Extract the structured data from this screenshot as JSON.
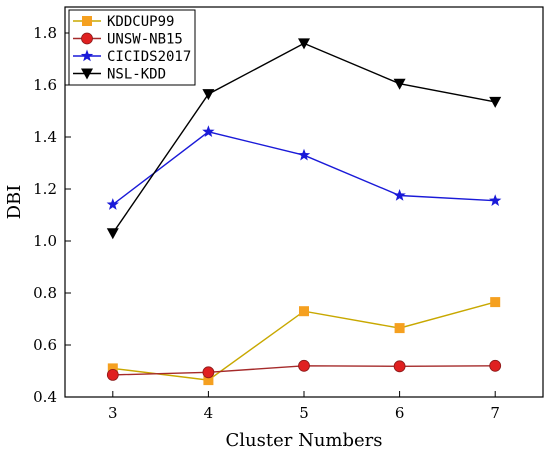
{
  "chart_data": {
    "type": "line",
    "title": "",
    "xlabel": "Cluster Numbers",
    "ylabel": "DBI",
    "x": [
      3,
      4,
      5,
      6,
      7
    ],
    "xlim": [
      2.5,
      7.5
    ],
    "ylim": [
      0.4,
      1.9
    ],
    "xticks": [
      "3",
      "4",
      "5",
      "6",
      "7"
    ],
    "yticks": [
      "0.4",
      "0.6",
      "0.8",
      "1.0",
      "1.2",
      "1.4",
      "1.6",
      "1.8"
    ],
    "grid": false,
    "legend_position": "top-left",
    "series": [
      {
        "name": "KDDCUP99",
        "values": [
          0.51,
          0.465,
          0.73,
          0.665,
          0.765
        ],
        "marker": "square",
        "line_color": "#c8a800",
        "marker_color": "#f5a020"
      },
      {
        "name": "UNSW-NB15",
        "values": [
          0.485,
          0.495,
          0.52,
          0.518,
          0.52
        ],
        "marker": "circle",
        "line_color": "#a52a2a",
        "marker_color": "#e02020"
      },
      {
        "name": "CICIDS2017",
        "values": [
          1.14,
          1.42,
          1.33,
          1.175,
          1.155
        ],
        "marker": "star",
        "line_color": "#1a1ad8",
        "marker_color": "#1a1ad8"
      },
      {
        "name": "NSL-KDD",
        "values": [
          1.03,
          1.565,
          1.76,
          1.605,
          1.535
        ],
        "marker": "triangle-down",
        "line_color": "#000000",
        "marker_color": "#000000"
      }
    ]
  }
}
